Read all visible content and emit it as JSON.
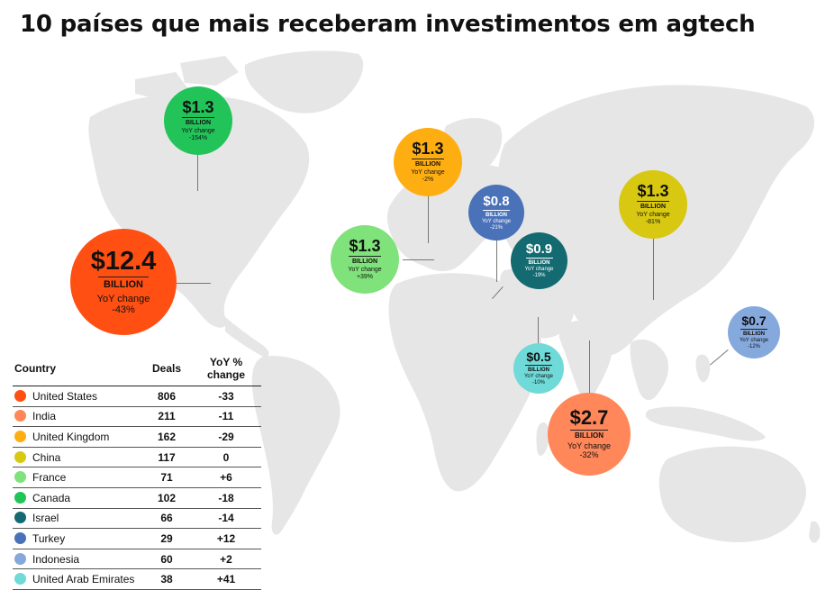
{
  "title": "10 países que mais receberam investimentos em agtech",
  "bubbles": [
    {
      "id": "united-states",
      "amount": "$12.4",
      "unit": "BILLION",
      "label": "YoY change",
      "change": "-43%",
      "color": "#ff4f12"
    },
    {
      "id": "canada",
      "amount": "$1.3",
      "unit": "BILLION",
      "label": "YoY change",
      "change": "-154%",
      "color": "#22c45a"
    },
    {
      "id": "united-kingdom",
      "amount": "$1.3",
      "unit": "BILLION",
      "label": "YoY change",
      "change": "-2%",
      "color": "#ffae12"
    },
    {
      "id": "france",
      "amount": "$1.3",
      "unit": "BILLION",
      "label": "YoY change",
      "change": "+39%",
      "color": "#7fe27a"
    },
    {
      "id": "turkey",
      "amount": "$0.8",
      "unit": "BILLION",
      "label": "YoY change",
      "change": "-21%",
      "color": "#4a72b8"
    },
    {
      "id": "israel",
      "amount": "$0.9",
      "unit": "BILLION",
      "label": "YoY change",
      "change": "-19%",
      "color": "#136a70"
    },
    {
      "id": "china",
      "amount": "$1.3",
      "unit": "BILLION",
      "label": "YoY change",
      "change": "-81%",
      "color": "#d8c812"
    },
    {
      "id": "indonesia",
      "amount": "$0.7",
      "unit": "BILLION",
      "label": "YoY change",
      "change": "-12%",
      "color": "#86a9dd"
    },
    {
      "id": "uae",
      "amount": "$0.5",
      "unit": "BILLION",
      "label": "YoY change",
      "change": "-10%",
      "color": "#6fdad8"
    },
    {
      "id": "india",
      "amount": "$2.7",
      "unit": "BILLION",
      "label": "YoY change",
      "change": "-32%",
      "color": "#ff875a"
    }
  ],
  "table": {
    "headers": [
      "Country",
      "Deals",
      "YoY % change"
    ],
    "rows": [
      {
        "country": "United States",
        "deals": "806",
        "yoy": "-33",
        "color": "#ff4f12"
      },
      {
        "country": "India",
        "deals": "211",
        "yoy": "-11",
        "color": "#ff875a"
      },
      {
        "country": "United Kingdom",
        "deals": "162",
        "yoy": "-29",
        "color": "#ffae12"
      },
      {
        "country": "China",
        "deals": "117",
        "yoy": "0",
        "color": "#d8c812"
      },
      {
        "country": "France",
        "deals": "71",
        "yoy": "+6",
        "color": "#7fe27a"
      },
      {
        "country": "Canada",
        "deals": "102",
        "yoy": "-18",
        "color": "#22c45a"
      },
      {
        "country": "Israel",
        "deals": "66",
        "yoy": "-14",
        "color": "#136a70"
      },
      {
        "country": "Turkey",
        "deals": "29",
        "yoy": "+12",
        "color": "#4a72b8"
      },
      {
        "country": "Indonesia",
        "deals": "60",
        "yoy": "+2",
        "color": "#86a9dd"
      },
      {
        "country": "United Arab Emirates",
        "deals": "38",
        "yoy": "+41",
        "color": "#6fdad8"
      }
    ]
  }
}
